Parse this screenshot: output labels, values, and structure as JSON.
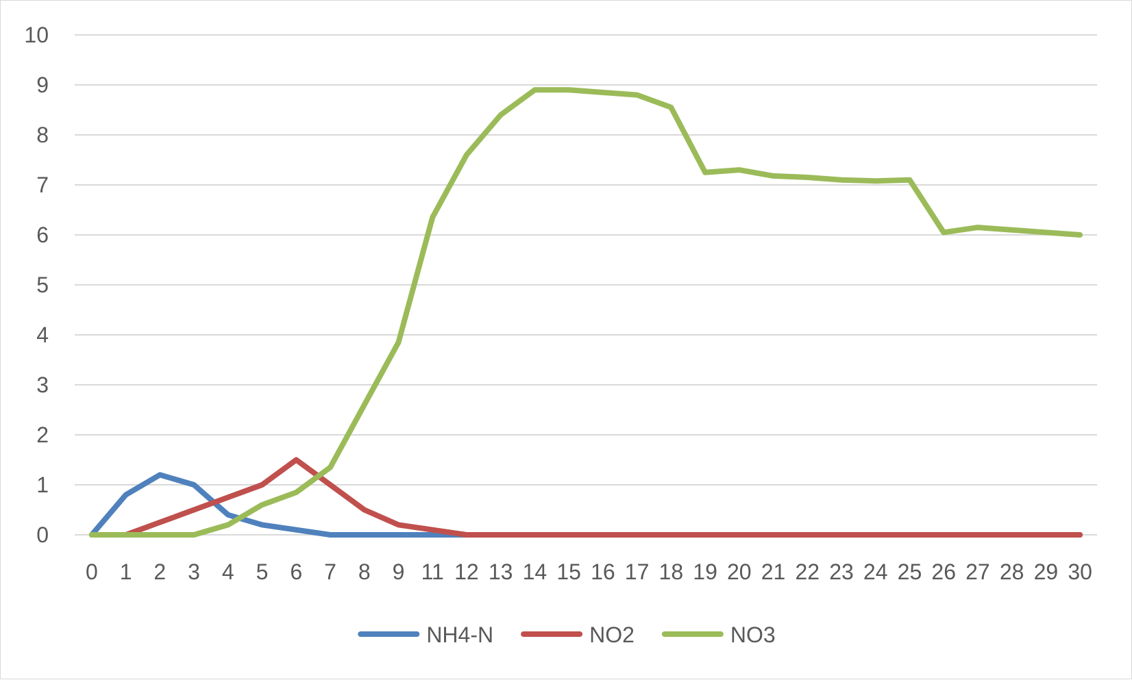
{
  "chart_data": {
    "type": "line",
    "title": "",
    "xlabel": "",
    "ylabel": "",
    "categories": [
      "0",
      "1",
      "2",
      "3",
      "4",
      "5",
      "6",
      "7",
      "8",
      "9",
      "11",
      "12",
      "13",
      "14",
      "15",
      "16",
      "17",
      "18",
      "19",
      "20",
      "21",
      "22",
      "23",
      "24",
      "25",
      "26",
      "27",
      "28",
      "29",
      "30"
    ],
    "y_ticks": [
      "0",
      "1",
      "2",
      "3",
      "4",
      "5",
      "6",
      "7",
      "8",
      "9",
      "10"
    ],
    "ylim": [
      0,
      10
    ],
    "grid": "horizontal",
    "legend_position": "bottom",
    "series": [
      {
        "name": "NH4-N",
        "color": "#4f81bd",
        "values": [
          0,
          0.8,
          1.2,
          1.0,
          0.4,
          0.2,
          0.1,
          0,
          0,
          0,
          0,
          0,
          0,
          0,
          0,
          0,
          0,
          0,
          0,
          0,
          0,
          0,
          0,
          0,
          0,
          0,
          0,
          0,
          0,
          0
        ]
      },
      {
        "name": "NO2",
        "color": "#c0504d",
        "values": [
          0,
          0,
          0.25,
          0.5,
          0.75,
          1.0,
          1.5,
          1.0,
          0.5,
          0.2,
          0.1,
          0,
          0,
          0,
          0,
          0,
          0,
          0,
          0,
          0,
          0,
          0,
          0,
          0,
          0,
          0,
          0,
          0,
          0,
          0
        ]
      },
      {
        "name": "NO3",
        "color": "#9bbb59",
        "values": [
          0,
          0,
          0,
          0,
          0.2,
          0.6,
          0.85,
          1.35,
          2.6,
          3.85,
          6.35,
          7.6,
          8.4,
          8.9,
          8.9,
          8.85,
          8.8,
          8.55,
          7.25,
          7.3,
          7.18,
          7.15,
          7.1,
          7.08,
          7.1,
          6.05,
          6.15,
          6.1,
          6.05,
          6.0
        ]
      }
    ]
  }
}
